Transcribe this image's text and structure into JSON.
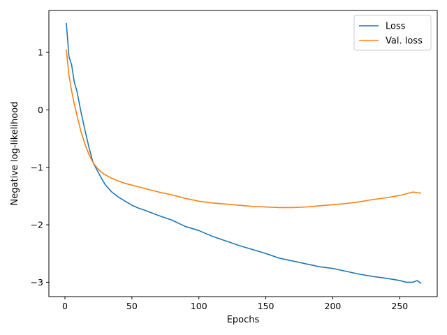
{
  "chart_data": {
    "type": "line",
    "title": "",
    "xlabel": "Epochs",
    "ylabel": "Negative log-likelihood",
    "xlim": [
      -12,
      278
    ],
    "ylim": [
      -3.25,
      1.73
    ],
    "x_ticks": [
      0,
      50,
      100,
      150,
      200,
      250
    ],
    "y_ticks": [
      -3,
      -2,
      -1,
      0,
      1
    ],
    "grid": false,
    "legend_position": "top-right",
    "series": [
      {
        "name": "Loss",
        "color": "#1f77b4",
        "points": [
          [
            1,
            1.51
          ],
          [
            3,
            0.93
          ],
          [
            5,
            0.78
          ],
          [
            7,
            0.48
          ],
          [
            9,
            0.32
          ],
          [
            12,
            -0.04
          ],
          [
            15,
            -0.36
          ],
          [
            18,
            -0.66
          ],
          [
            21,
            -0.92
          ],
          [
            24,
            -1.05
          ],
          [
            27,
            -1.18
          ],
          [
            30,
            -1.3
          ],
          [
            35,
            -1.43
          ],
          [
            40,
            -1.52
          ],
          [
            45,
            -1.59
          ],
          [
            50,
            -1.66
          ],
          [
            55,
            -1.71
          ],
          [
            60,
            -1.75
          ],
          [
            70,
            -1.84
          ],
          [
            80,
            -1.92
          ],
          [
            90,
            -2.03
          ],
          [
            100,
            -2.1
          ],
          [
            110,
            -2.2
          ],
          [
            120,
            -2.28
          ],
          [
            130,
            -2.36
          ],
          [
            140,
            -2.43
          ],
          [
            150,
            -2.5
          ],
          [
            160,
            -2.58
          ],
          [
            170,
            -2.63
          ],
          [
            180,
            -2.68
          ],
          [
            190,
            -2.73
          ],
          [
            200,
            -2.76
          ],
          [
            210,
            -2.81
          ],
          [
            220,
            -2.86
          ],
          [
            230,
            -2.9
          ],
          [
            240,
            -2.93
          ],
          [
            250,
            -2.97
          ],
          [
            255,
            -3.0
          ],
          [
            260,
            -3.0
          ],
          [
            263,
            -2.97
          ],
          [
            266,
            -3.02
          ]
        ]
      },
      {
        "name": "Val. loss",
        "color": "#ff7f0e",
        "points": [
          [
            1,
            1.05
          ],
          [
            3,
            0.6
          ],
          [
            5,
            0.33
          ],
          [
            7,
            0.1
          ],
          [
            9,
            -0.1
          ],
          [
            12,
            -0.38
          ],
          [
            15,
            -0.6
          ],
          [
            18,
            -0.78
          ],
          [
            21,
            -0.92
          ],
          [
            24,
            -1.01
          ],
          [
            27,
            -1.08
          ],
          [
            30,
            -1.13
          ],
          [
            35,
            -1.19
          ],
          [
            40,
            -1.24
          ],
          [
            45,
            -1.28
          ],
          [
            50,
            -1.31
          ],
          [
            55,
            -1.34
          ],
          [
            60,
            -1.37
          ],
          [
            70,
            -1.43
          ],
          [
            80,
            -1.48
          ],
          [
            90,
            -1.54
          ],
          [
            100,
            -1.59
          ],
          [
            110,
            -1.62
          ],
          [
            120,
            -1.64
          ],
          [
            130,
            -1.66
          ],
          [
            140,
            -1.68
          ],
          [
            150,
            -1.69
          ],
          [
            160,
            -1.7
          ],
          [
            170,
            -1.7
          ],
          [
            180,
            -1.69
          ],
          [
            190,
            -1.67
          ],
          [
            200,
            -1.65
          ],
          [
            210,
            -1.63
          ],
          [
            220,
            -1.6
          ],
          [
            230,
            -1.56
          ],
          [
            240,
            -1.53
          ],
          [
            250,
            -1.49
          ],
          [
            255,
            -1.46
          ],
          [
            260,
            -1.43
          ],
          [
            263,
            -1.44
          ],
          [
            266,
            -1.45
          ]
        ]
      }
    ]
  }
}
